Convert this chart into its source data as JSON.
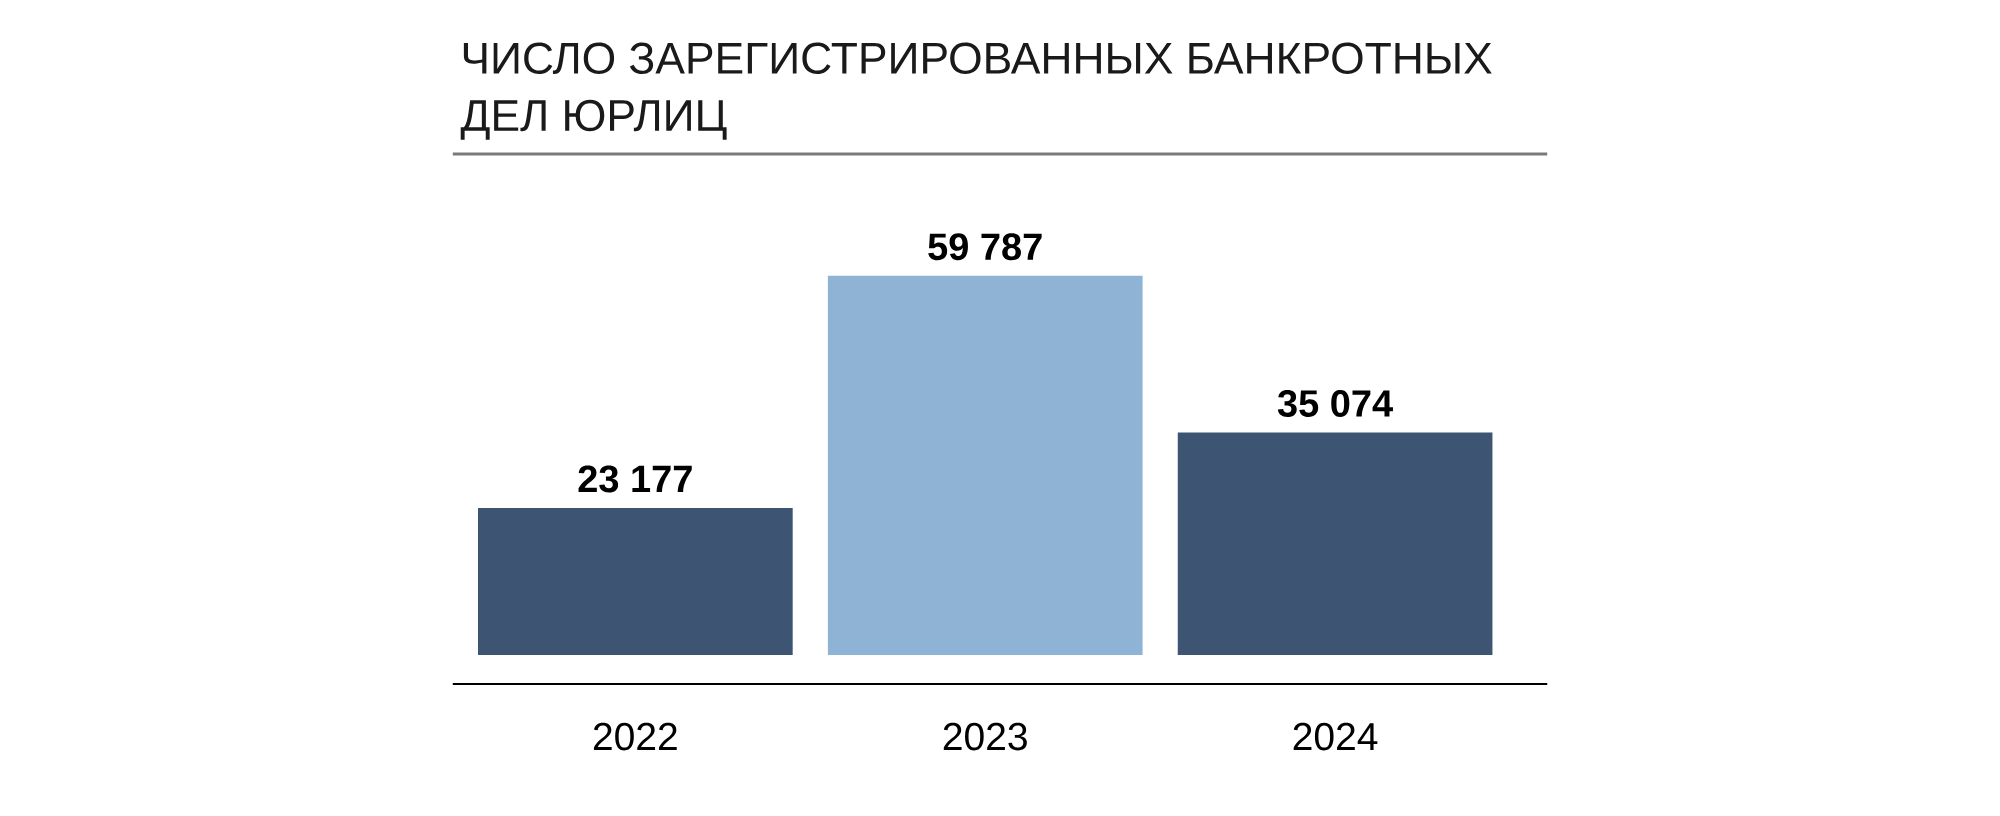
{
  "chart_data": {
    "type": "bar",
    "title": "ЧИСЛО ЗАРЕГИСТРИРОВАННЫХ БАНКРОТНЫХ ДЕЛ ЮРЛИЦ",
    "categories": [
      "2022",
      "2023",
      "2024"
    ],
    "values": [
      23177,
      59787,
      35074
    ],
    "colors": [
      "#3d5573",
      "#8fb3d5",
      "#3d5573"
    ],
    "value_labels": [
      "23 177",
      "59 787",
      "35 074"
    ],
    "tick_labels": "x"
  }
}
